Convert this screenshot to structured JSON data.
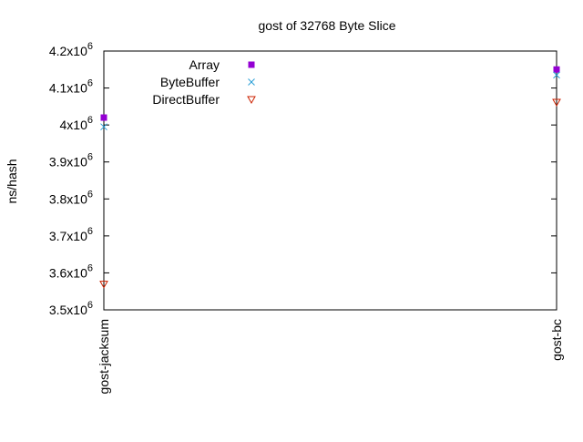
{
  "chart_data": {
    "type": "scatter",
    "title": "gost of 32768 Byte Slice",
    "xlabel": "",
    "ylabel": "ns/hash",
    "categories": [
      "gost-jacksum",
      "gost-bc"
    ],
    "ylim": [
      3500000,
      4200000
    ],
    "yticks": [
      {
        "value": 3500000,
        "mantissa": "3.5x10",
        "exp": "6"
      },
      {
        "value": 3600000,
        "mantissa": "3.6x10",
        "exp": "6"
      },
      {
        "value": 3700000,
        "mantissa": "3.7x10",
        "exp": "6"
      },
      {
        "value": 3800000,
        "mantissa": "3.8x10",
        "exp": "6"
      },
      {
        "value": 3900000,
        "mantissa": "3.9x10",
        "exp": "6"
      },
      {
        "value": 4000000,
        "mantissa": "4x10",
        "exp": "6"
      },
      {
        "value": 4100000,
        "mantissa": "4.1x10",
        "exp": "6"
      },
      {
        "value": 4200000,
        "mantissa": "4.2x10",
        "exp": "6"
      }
    ],
    "grid": false,
    "legend_position": "top-left",
    "series": [
      {
        "name": "Array",
        "marker": "filled-square",
        "color": "#9400d3",
        "values": [
          4020000,
          4150000
        ]
      },
      {
        "name": "ByteBuffer",
        "marker": "cross",
        "color": "#2a9fd6",
        "values": [
          3995000,
          4135000
        ]
      },
      {
        "name": "DirectBuffer",
        "marker": "open-triangle-down",
        "color": "#cc2200",
        "values": [
          3570000,
          4062000
        ]
      }
    ]
  }
}
